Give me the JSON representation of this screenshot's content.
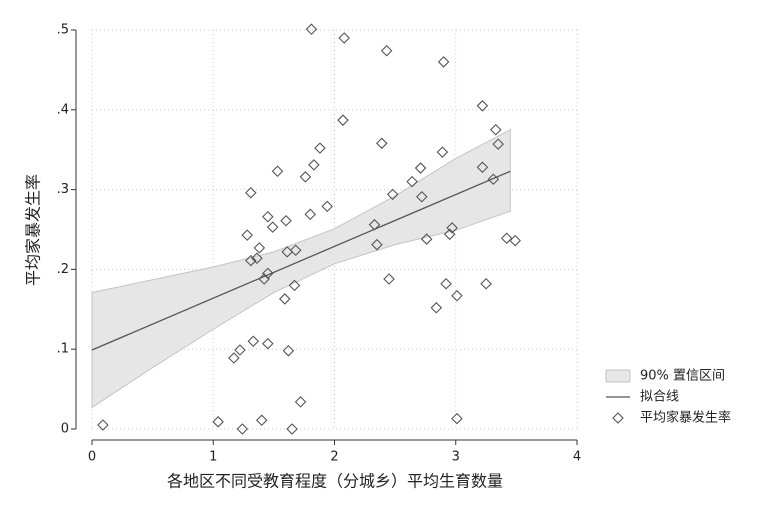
{
  "chart_data": {
    "type": "scatter-fit",
    "xlabel": "各地区不同受教育程度（分城乡）平均生育数量",
    "ylabel": "平均家暴发生率",
    "xlim": [
      0,
      4
    ],
    "xticks": [
      0,
      1,
      2,
      3,
      4
    ],
    "ylim": [
      0,
      0.5
    ],
    "yticks": [
      0,
      {
        "value": 0.1,
        "label": ".1"
      },
      {
        "value": 0.2,
        "label": ".2"
      },
      {
        "value": 0.3,
        "label": ".3"
      },
      {
        "value": 0.4,
        "label": ".4"
      },
      {
        "value": 0.5,
        "label": ".5"
      }
    ],
    "grid": true,
    "legend_position": "right",
    "band": {
      "name": "90% 置信区间",
      "color": "#e6e6e6",
      "x": [
        0,
        0.5,
        1,
        1.5,
        2,
        2.5,
        3,
        3.45
      ],
      "lower": [
        0.027,
        0.077,
        0.125,
        0.171,
        0.207,
        0.231,
        0.249,
        0.273
      ],
      "upper": [
        0.171,
        0.187,
        0.203,
        0.222,
        0.251,
        0.292,
        0.339,
        0.375
      ]
    },
    "fit": {
      "name": "拟合线",
      "color": "#555555",
      "x": [
        0,
        3.45
      ],
      "values": [
        0.099,
        0.323
      ]
    },
    "points": {
      "name": "平均家暴发生率",
      "color": "#555555",
      "x": [
        0.09,
        1.04,
        1.24,
        1.4,
        1.65,
        1.72,
        3.01,
        1.17,
        1.22,
        1.33,
        1.45,
        1.62,
        1.31,
        1.28,
        1.31,
        1.36,
        1.38,
        1.42,
        1.45,
        1.45,
        1.49,
        1.53,
        1.6,
        1.61,
        1.68,
        1.59,
        1.67,
        1.76,
        1.8,
        1.83,
        1.88,
        1.94,
        1.81,
        2.08,
        2.07,
        2.33,
        2.35,
        2.39,
        2.43,
        2.45,
        2.48,
        2.64,
        2.71,
        2.72,
        2.76,
        2.84,
        2.89,
        2.9,
        2.92,
        2.95,
        2.97,
        3.01,
        3.22,
        3.22,
        3.25,
        3.31,
        3.33,
        3.35,
        3.42,
        3.49
      ],
      "values": [
        0.005,
        0.009,
        0.0,
        0.011,
        0.0,
        0.034,
        0.013,
        0.089,
        0.099,
        0.11,
        0.107,
        0.098,
        0.296,
        0.243,
        0.211,
        0.214,
        0.227,
        0.188,
        0.195,
        0.266,
        0.253,
        0.323,
        0.261,
        0.222,
        0.224,
        0.163,
        0.18,
        0.316,
        0.269,
        0.331,
        0.352,
        0.279,
        0.501,
        0.49,
        0.387,
        0.256,
        0.231,
        0.358,
        0.474,
        0.188,
        0.294,
        0.31,
        0.327,
        0.291,
        0.238,
        0.152,
        0.347,
        0.46,
        0.182,
        0.244,
        0.252,
        0.167,
        0.405,
        0.328,
        0.182,
        0.313,
        0.375,
        0.357,
        0.239,
        0.236
      ]
    }
  }
}
